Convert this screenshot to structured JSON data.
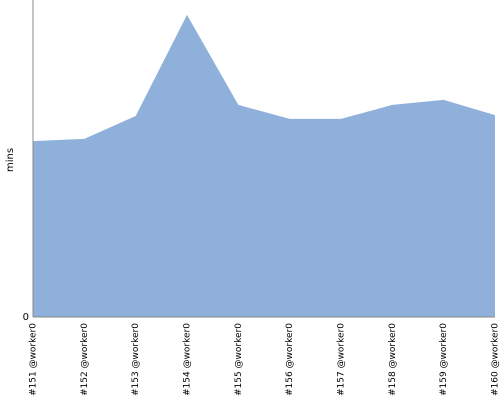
{
  "chart_data": {
    "type": "area",
    "y_label": "mins",
    "categories": [
      "#151 @worker0",
      "#152 @worker0",
      "#153 @worker0",
      "#154 @worker0",
      "#155 @worker0",
      "#156 @worker0",
      "#157 @worker0",
      "#158 @worker0",
      "#159 @worker0",
      "#160 @worker0"
    ],
    "values": [
      5.55,
      5.62,
      6.34,
      9.53,
      6.69,
      6.25,
      6.25,
      6.69,
      6.85,
      6.37
    ],
    "color": "#8eb0da",
    "ylim": [
      0,
      10
    ],
    "yticks": [
      0
    ],
    "grid": false
  }
}
